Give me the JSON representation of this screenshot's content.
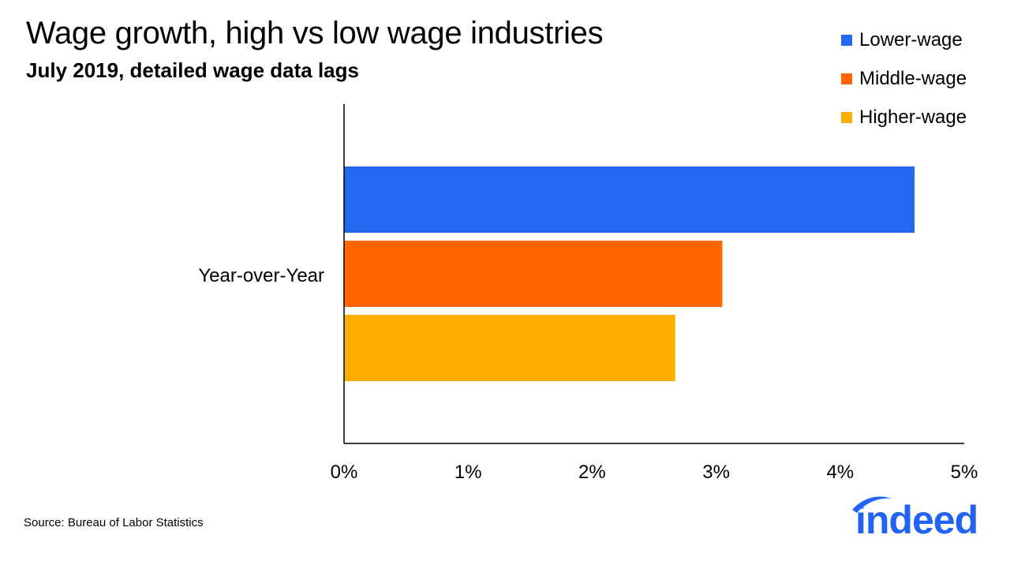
{
  "chart_data": {
    "type": "bar",
    "orientation": "horizontal",
    "title": "Wage growth, high vs low wage industries",
    "subtitle": "July 2019, detailed wage data lags",
    "categories": [
      "Year-over-Year"
    ],
    "series": [
      {
        "name": "Lower-wage",
        "values": [
          4.6
        ],
        "color": "#2568F0"
      },
      {
        "name": "Middle-wage",
        "values": [
          3.05
        ],
        "color": "#FF6600"
      },
      {
        "name": "Higher-wage",
        "values": [
          2.67
        ],
        "color": "#FFAE00"
      }
    ],
    "xlim": [
      0,
      5
    ],
    "xticks": [
      "0%",
      "1%",
      "2%",
      "3%",
      "4%",
      "5%"
    ],
    "xlabel": "",
    "ylabel": "",
    "grid": false,
    "legend_position": "top-right",
    "source": "Source: Bureau of Labor Statistics"
  },
  "logo": {
    "text": "indeed",
    "color": "#2164F3"
  }
}
